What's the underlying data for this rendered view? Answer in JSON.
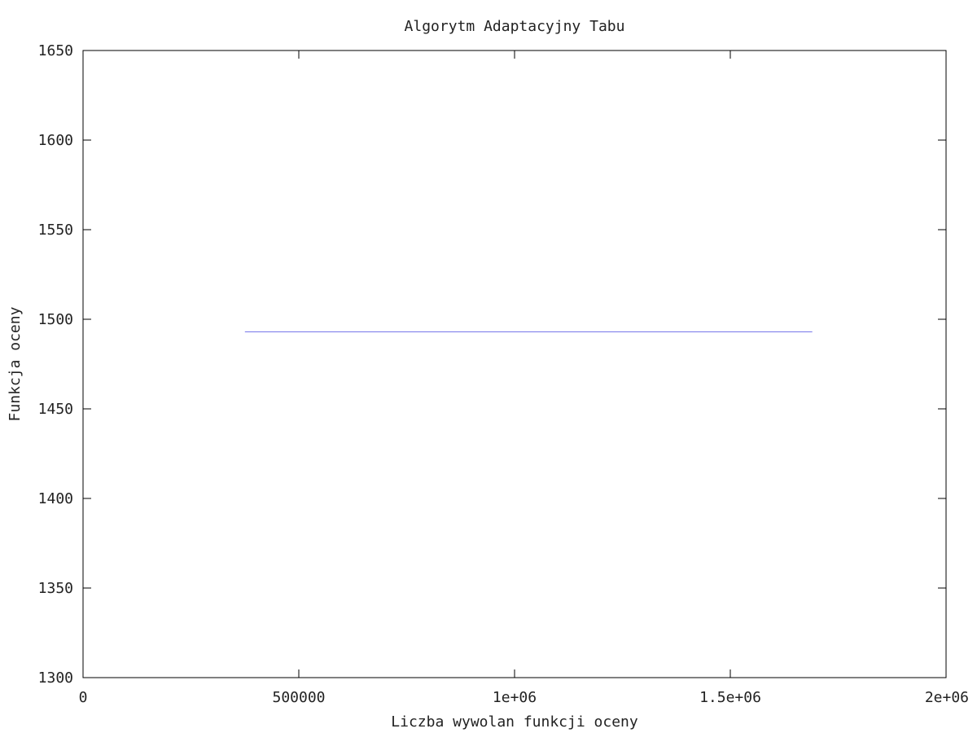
{
  "chart_data": {
    "type": "line",
    "title": "Algorytm Adaptacyjny Tabu",
    "xlabel": "Liczba wywolan funkcji oceny",
    "ylabel": "Funkcja oceny",
    "xlim": [
      0,
      2000000
    ],
    "ylim": [
      1300,
      1650
    ],
    "x_ticks": [
      {
        "value": 0,
        "label": "0"
      },
      {
        "value": 500000,
        "label": "500000"
      },
      {
        "value": 1000000,
        "label": "1e+06"
      },
      {
        "value": 1500000,
        "label": "1.5e+06"
      },
      {
        "value": 2000000,
        "label": "2e+06"
      }
    ],
    "y_ticks": [
      {
        "value": 1300,
        "label": "1300"
      },
      {
        "value": 1350,
        "label": "1350"
      },
      {
        "value": 1400,
        "label": "1400"
      },
      {
        "value": 1450,
        "label": "1450"
      },
      {
        "value": 1500,
        "label": "1500"
      },
      {
        "value": 1550,
        "label": "1550"
      },
      {
        "value": 1600,
        "label": "1600"
      },
      {
        "value": 1650,
        "label": "1650"
      }
    ],
    "grid": false,
    "series": [
      {
        "color": "#6f6fe8",
        "x": [
          375000,
          1690000
        ],
        "y": [
          1493,
          1493
        ]
      }
    ]
  }
}
